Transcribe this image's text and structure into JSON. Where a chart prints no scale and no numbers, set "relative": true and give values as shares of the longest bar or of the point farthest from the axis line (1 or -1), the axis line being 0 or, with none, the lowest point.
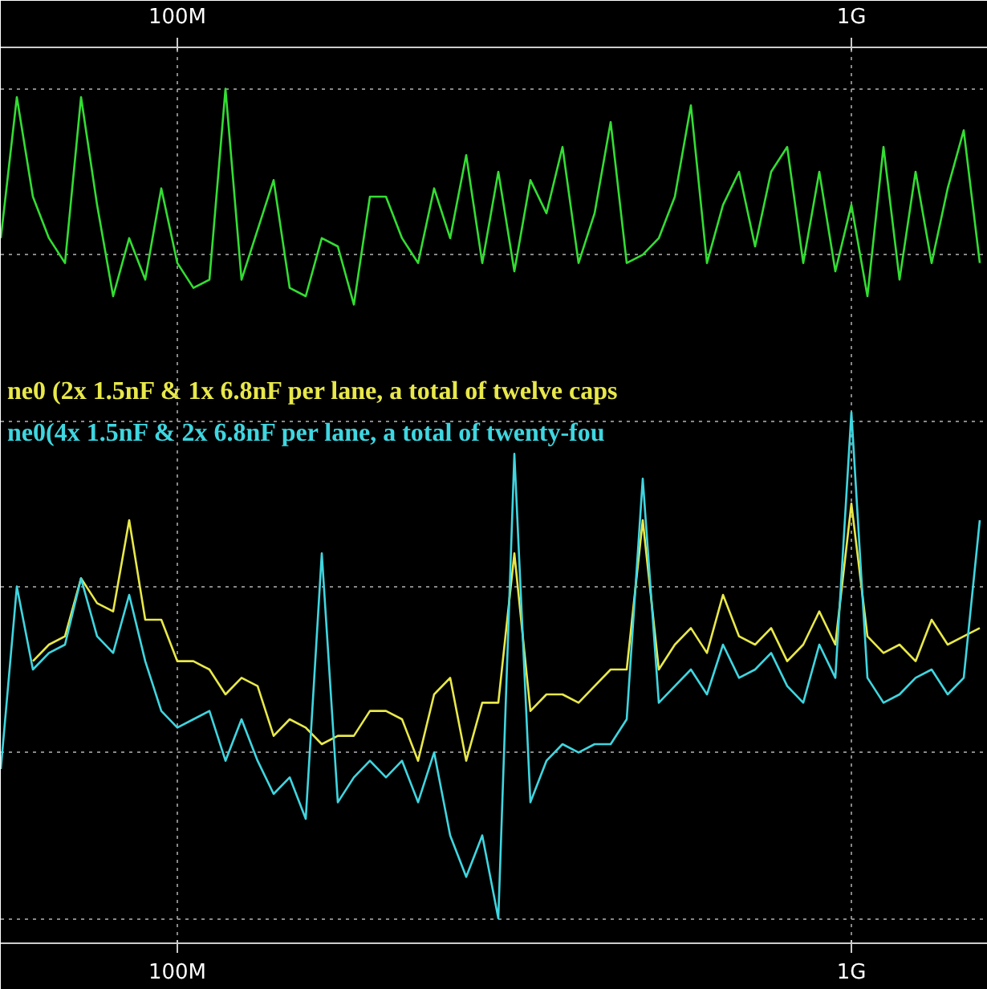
{
  "chart_data": {
    "type": "line",
    "relative": true,
    "grid": true,
    "legend": "center",
    "line_style": "solid",
    "marker": "none",
    "categories": [
      null,
      null,
      null,
      null,
      null,
      null,
      null,
      null,
      null,
      null,
      null,
      "100M",
      null,
      null,
      null,
      null,
      null,
      null,
      null,
      null,
      null,
      null,
      null,
      null,
      null,
      null,
      null,
      null,
      null,
      null,
      null,
      null,
      null,
      null,
      null,
      null,
      null,
      null,
      null,
      null,
      null,
      null,
      null,
      null,
      null,
      null,
      null,
      null,
      null,
      null,
      null,
      null,
      null,
      "1G",
      null,
      null,
      null,
      null,
      null,
      null,
      null,
      null
    ],
    "series": [
      {
        "color": "#33dd33",
        "values": [
          0.82,
          0.99,
          0.87,
          0.82,
          0.79,
          0.99,
          0.86,
          0.75,
          0.82,
          0.77,
          0.88,
          0.79,
          0.76,
          0.77,
          1.0,
          0.77,
          0.83,
          0.89,
          0.76,
          0.75,
          0.82,
          0.81,
          0.74,
          0.87,
          0.87,
          0.82,
          0.79,
          0.88,
          0.82,
          0.92,
          0.79,
          0.9,
          0.78,
          0.89,
          0.85,
          0.93,
          0.79,
          0.85,
          0.96,
          0.79,
          0.8,
          0.82,
          0.87,
          0.98,
          0.79,
          0.86,
          0.9,
          0.81,
          0.9,
          0.93,
          0.79,
          0.9,
          0.78,
          0.86,
          0.75,
          0.93,
          0.77,
          0.9,
          0.79,
          0.88,
          0.95,
          0.79
        ]
      },
      {
        "name": "ne0 (2x 1.5nF & 1x 6.8nF per lane, a total of twelve caps",
        "color": "#e8e84a",
        "values": [
          null,
          null,
          0.31,
          0.33,
          0.34,
          0.41,
          0.38,
          0.37,
          0.48,
          0.36,
          0.36,
          0.31,
          0.31,
          0.3,
          0.27,
          0.29,
          0.28,
          0.22,
          0.24,
          0.23,
          0.21,
          0.22,
          0.22,
          0.25,
          0.25,
          0.24,
          0.19,
          0.27,
          0.29,
          0.19,
          0.26,
          0.26,
          0.44,
          0.25,
          0.27,
          0.27,
          0.26,
          0.28,
          0.3,
          0.3,
          0.48,
          0.3,
          0.33,
          0.35,
          0.32,
          0.39,
          0.34,
          0.33,
          0.35,
          0.31,
          0.33,
          0.37,
          0.33,
          0.5,
          0.34,
          0.32,
          0.33,
          0.31,
          0.36,
          0.33,
          0.34,
          0.35
        ]
      },
      {
        "name": "ne0(4x 1.5nF & 2x 6.8nF per lane, a total of  twenty-fou",
        "color": "#3fd6e0",
        "values": [
          0.18,
          0.4,
          0.3,
          0.32,
          0.33,
          0.41,
          0.34,
          0.32,
          0.39,
          0.31,
          0.25,
          0.23,
          0.24,
          0.25,
          0.19,
          0.24,
          0.19,
          0.15,
          0.17,
          0.12,
          0.44,
          0.14,
          0.17,
          0.19,
          0.17,
          0.19,
          0.14,
          0.2,
          0.1,
          0.05,
          0.1,
          0.0,
          0.56,
          0.14,
          0.19,
          0.21,
          0.2,
          0.21,
          0.21,
          0.24,
          0.53,
          0.26,
          0.28,
          0.3,
          0.27,
          0.33,
          0.29,
          0.3,
          0.32,
          0.28,
          0.26,
          0.33,
          0.29,
          0.61,
          0.29,
          0.26,
          0.27,
          0.29,
          0.3,
          0.27,
          0.29,
          0.48
        ]
      }
    ]
  }
}
